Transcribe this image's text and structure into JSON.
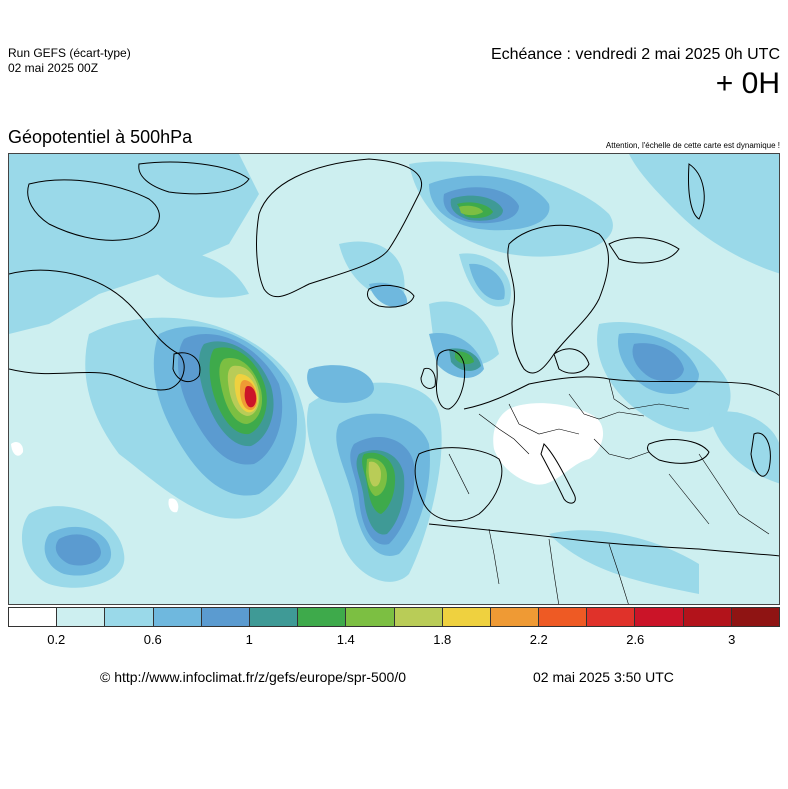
{
  "header": {
    "run_title": "Run GEFS (écart-type)",
    "run_date": "02 mai 2025 00Z",
    "valid_time": "Echéance : vendredi 2 mai 2025 0h UTC",
    "lead_time": "+ 0H",
    "parameter": "Géopotentiel à 500hPa",
    "warning": "Attention, l'échelle de cette carte est dynamique !"
  },
  "legend": {
    "colors": [
      "#ffffff",
      "#cdeff0",
      "#9ad9e9",
      "#6fb8de",
      "#5b9bd0",
      "#3f9a96",
      "#3eaa4b",
      "#7cbf42",
      "#b9cc57",
      "#efd13f",
      "#ef9a34",
      "#ee5a24",
      "#e0322a",
      "#cb1428",
      "#b3131b",
      "#8f1413"
    ],
    "tick_labels": [
      "0.2",
      "0.6",
      "1",
      "1.4",
      "1.8",
      "2.2",
      "2.6",
      "3"
    ]
  },
  "footer": {
    "url": "© http://www.infoclimat.fr/z/gefs/europe/spr-500/0",
    "generated": "02 mai 2025  3:50 UTC"
  }
}
